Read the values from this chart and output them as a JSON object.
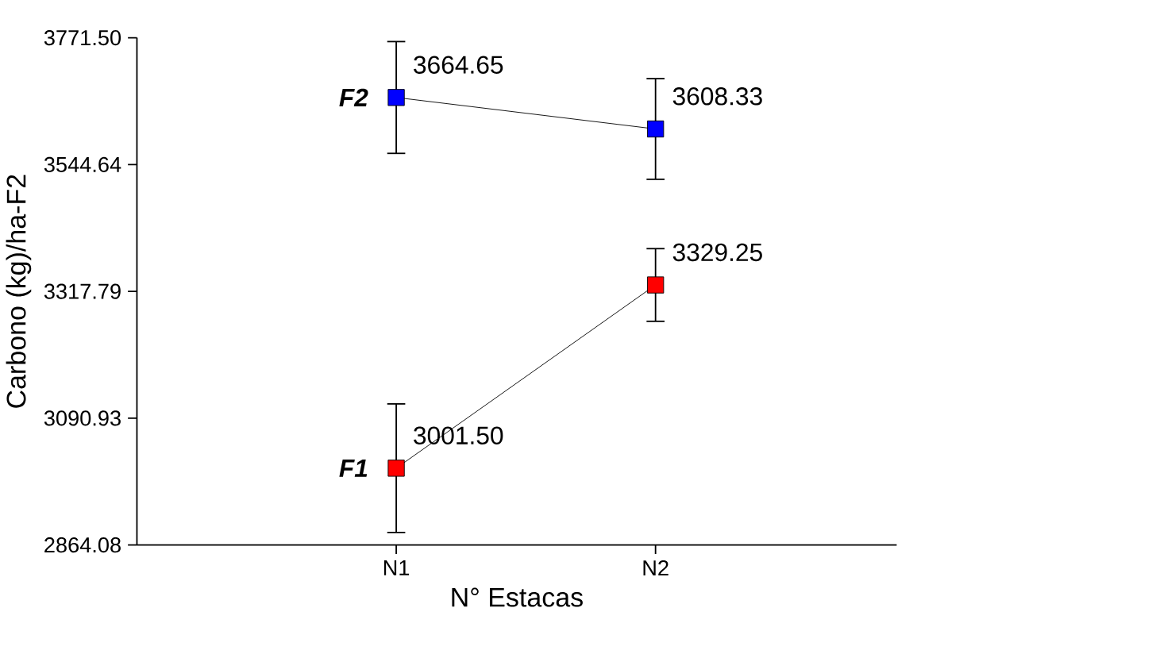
{
  "chart_data": {
    "type": "line",
    "xlabel": "N° Estacas",
    "ylabel": "Carbono (kg)/ha-F2",
    "categories": [
      "N1",
      "N2"
    ],
    "series": [
      {
        "name": "F1",
        "color": "#ff0000",
        "values": [
          3001.5,
          3329.25
        ],
        "errors": [
          115,
          65
        ],
        "value_labels": [
          "3001.50",
          "3329.25"
        ]
      },
      {
        "name": "F2",
        "color": "#0000ff",
        "values": [
          3664.65,
          3608.33
        ],
        "errors": [
          100,
          90
        ],
        "value_labels": [
          "3664.65",
          "3608.33"
        ]
      }
    ],
    "ylim": [
      2864.08,
      3771.5
    ],
    "yticks": [
      {
        "value": 2864.08,
        "label": "2864.08"
      },
      {
        "value": 3090.93,
        "label": "3090.93"
      },
      {
        "value": 3317.79,
        "label": "3317.79"
      },
      {
        "value": 3544.64,
        "label": "3544.64"
      },
      {
        "value": 3771.5,
        "label": "3771.50"
      }
    ],
    "marker": "square",
    "line_style": "solid",
    "grid": false,
    "legend": false
  }
}
